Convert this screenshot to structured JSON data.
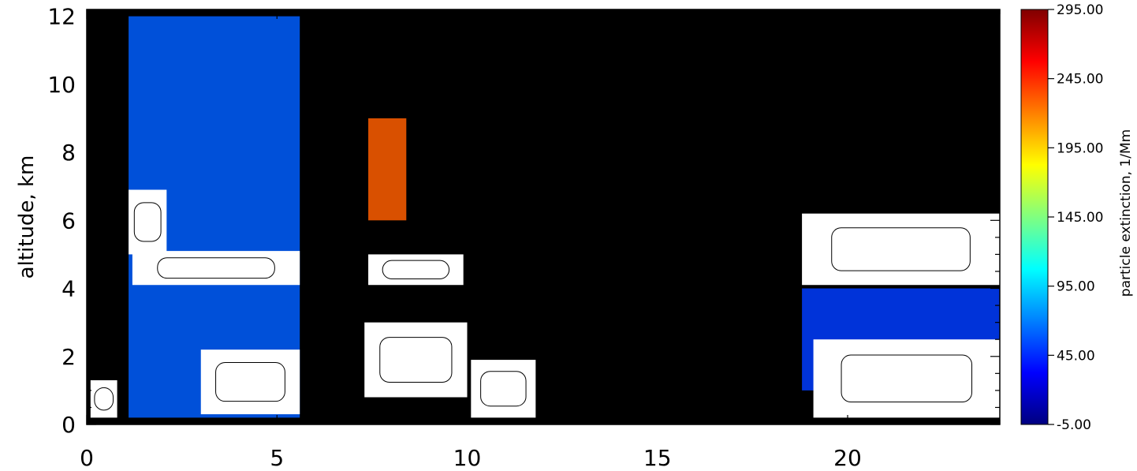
{
  "chart_data": {
    "type": "heatmap",
    "ylabel": "altitude,  km",
    "xlabel": "",
    "xlim": [
      0,
      24
    ],
    "ylim": [
      0,
      12.2
    ],
    "x_ticks": [
      0,
      5,
      10,
      15,
      20
    ],
    "y_ticks": [
      0,
      2,
      4,
      6,
      8,
      10,
      12
    ],
    "colorbar": {
      "label": "particle extinction,  1/Mm",
      "min": -5.0,
      "max": 295.0,
      "ticks": [
        "-5.00",
        "45.00",
        "95.00",
        "145.00",
        "195.00",
        "245.00",
        "295.00"
      ],
      "colormap": [
        "#000080",
        "#0000ff",
        "#0080ff",
        "#00ffff",
        "#80ff80",
        "#ffff00",
        "#ff8000",
        "#ff0000",
        "#800000"
      ],
      "over_color": "#ffffff",
      "no_data_color": "#000000"
    },
    "features": [
      {
        "x": [
          0.1,
          0.8
        ],
        "alt": [
          0.2,
          1.3
        ],
        "value": 300
      },
      {
        "x": [
          1.1,
          2.1
        ],
        "alt": [
          5.0,
          6.9
        ],
        "value": 300
      },
      {
        "x": [
          1.2,
          5.6
        ],
        "alt": [
          4.1,
          5.1
        ],
        "value": 300
      },
      {
        "x": [
          3.0,
          5.6
        ],
        "alt": [
          0.3,
          2.2
        ],
        "value": 300
      },
      {
        "x": [
          7.3,
          10.0
        ],
        "alt": [
          0.8,
          3.0
        ],
        "value": 300
      },
      {
        "x": [
          7.4,
          9.9
        ],
        "alt": [
          4.1,
          5.0
        ],
        "value": 300
      },
      {
        "x": [
          10.1,
          11.8
        ],
        "alt": [
          0.2,
          1.9
        ],
        "value": 300
      },
      {
        "x": [
          18.8,
          24.0
        ],
        "alt": [
          4.1,
          6.2
        ],
        "value": 300
      },
      {
        "x": [
          19.1,
          24.0
        ],
        "alt": [
          0.2,
          2.5
        ],
        "value": 300
      },
      {
        "x": [
          1.1,
          5.6
        ],
        "alt": [
          0.2,
          12.0
        ],
        "value": 60
      },
      {
        "x": [
          7.4,
          8.4
        ],
        "alt": [
          6.0,
          9.0
        ],
        "value": 230
      },
      {
        "x": [
          18.8,
          24.0
        ],
        "alt": [
          1.0,
          4.0
        ],
        "value": 50
      }
    ]
  }
}
